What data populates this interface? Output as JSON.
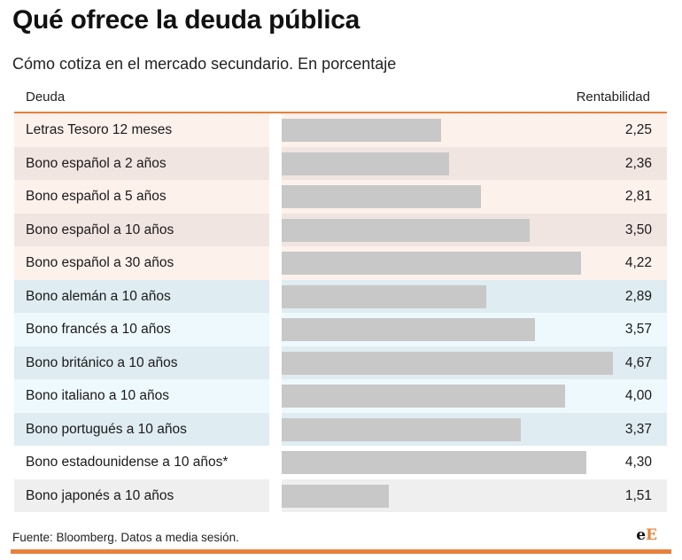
{
  "header": {
    "title": "Qué ofrece la deuda pública",
    "subtitle": "Cómo cotiza en el mercado secundario. En porcentaje"
  },
  "table": {
    "col_left": "Deuda",
    "col_right": "Rentabilidad"
  },
  "chart_data": {
    "type": "bar",
    "orientation": "horizontal",
    "title": "Qué ofrece la deuda pública",
    "subtitle": "Cómo cotiza en el mercado secundario. En porcentaje",
    "xlim": [
      0,
      4.67
    ],
    "categories": [
      "Letras Tesoro 12 meses",
      "Bono español a 2 años",
      "Bono español a 5 años",
      "Bono español a 10 años",
      "Bono español a 30 años",
      "Bono alemán a 10 años",
      "Bono francés a 10 años",
      "Bono británico a 10 años",
      "Bono italiano a 10 años",
      "Bono portugués a 10 años",
      "Bono estadounidense a 10 años*",
      "Bono japonés a 10 años"
    ],
    "values": [
      2.25,
      2.36,
      2.81,
      3.5,
      4.22,
      2.89,
      3.57,
      4.67,
      4.0,
      3.37,
      4.3,
      1.51
    ],
    "value_labels": [
      "2,25",
      "2,36",
      "2,81",
      "3,50",
      "4,22",
      "2,89",
      "3,57",
      "4,67",
      "4,00",
      "3,37",
      "4,30",
      "1,51"
    ],
    "row_colors": [
      "#fdf1ec",
      "#f1e5e1",
      "#fdf1ec",
      "#f1e5e1",
      "#fdf1ec",
      "#dfecf1",
      "#eef9fd",
      "#dfecf1",
      "#eef9fd",
      "#dfecf1",
      "#ffffff",
      "#efefef"
    ],
    "bar_color": "#c8c8c8"
  },
  "footer": {
    "source": "Fuente: Bloomberg. Datos a media sesión.",
    "logo_e1": "e",
    "logo_e2": "E"
  },
  "colors": {
    "accent": "#e8813c"
  }
}
